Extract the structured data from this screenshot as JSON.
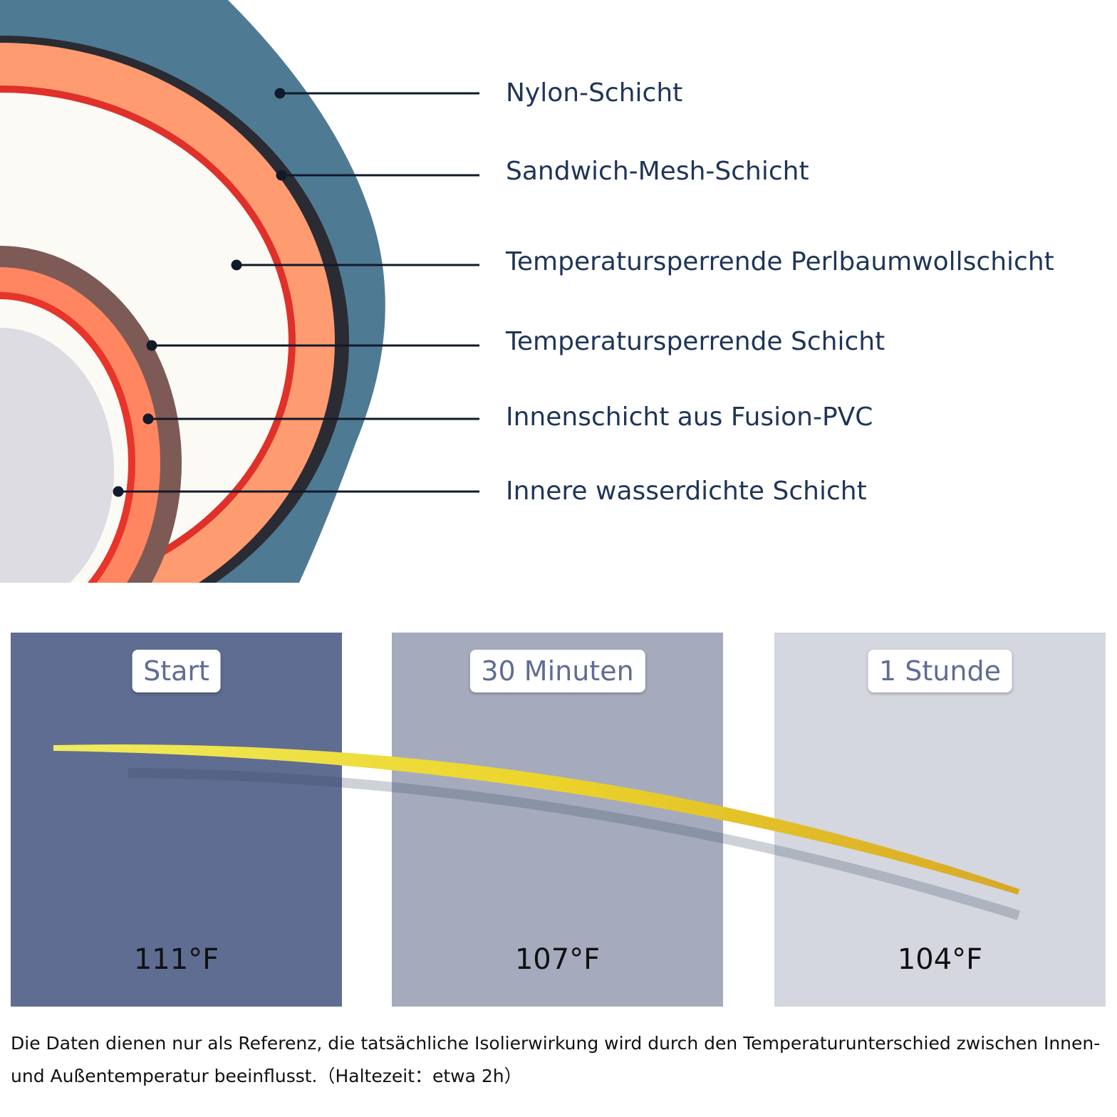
{
  "layers": [
    {
      "label": "Nylon-Schicht"
    },
    {
      "label": "Sandwich-Mesh-Schicht"
    },
    {
      "label": "Temperatursperrende Perlbaumwollschicht"
    },
    {
      "label": "Temperatursperrende Schicht"
    },
    {
      "label": "Innenschicht aus Fusion-PVC"
    },
    {
      "label": "Innere wasserdichte Schicht"
    }
  ],
  "panels": [
    {
      "label": "Start",
      "temperature": "111°F"
    },
    {
      "label": "30 Minuten",
      "temperature": "107°F"
    },
    {
      "label": "1 Stunde",
      "temperature": "104°F"
    }
  ],
  "footnote": "Die Daten dienen nur als Referenz, die tatsächliche Isolierwirkung wird durch den Temperaturunterschied zwischen Innen- und Außentemperatur beeinflusst.（Haltezeit：etwa 2h）"
}
